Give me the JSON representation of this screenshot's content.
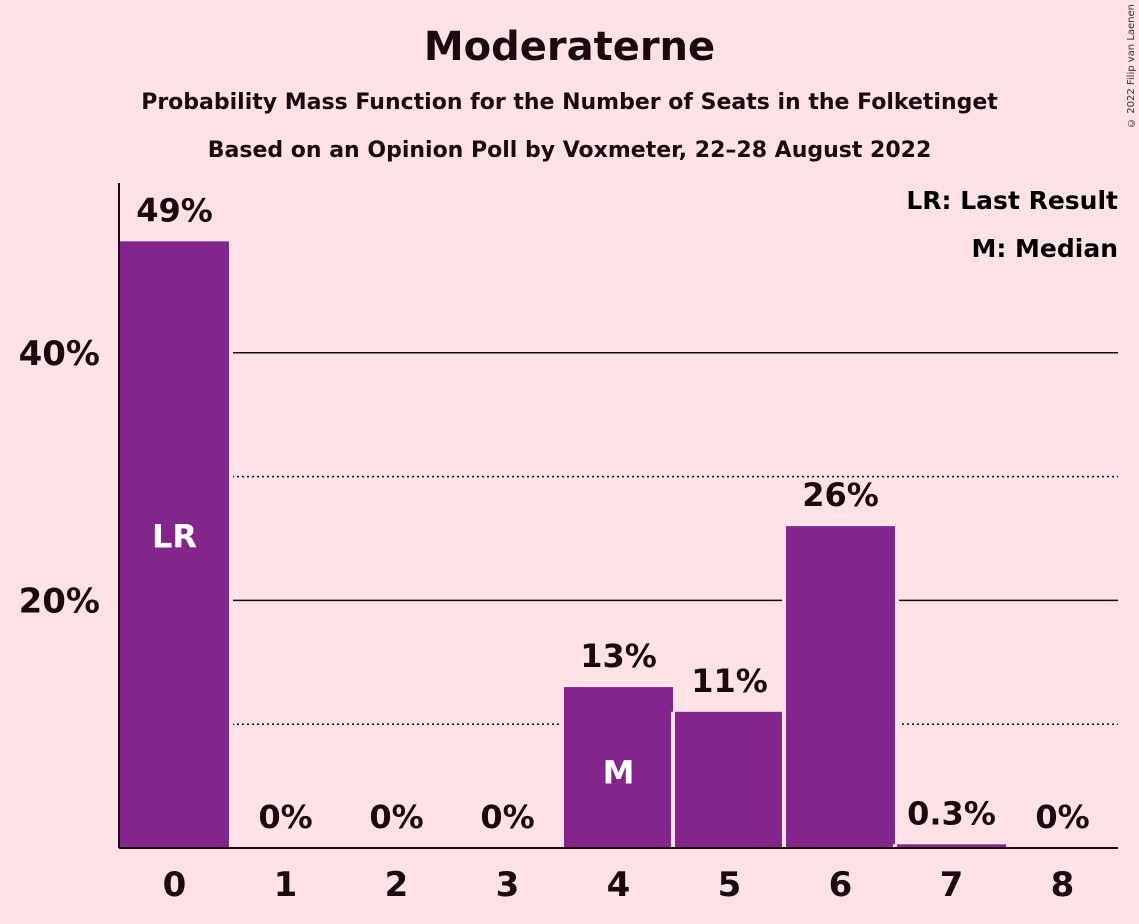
{
  "header": {
    "title": "Moderaterne",
    "subtitle1": "Probability Mass Function for the Number of Seats in the Folketinget",
    "subtitle2": "Based on an Opinion Poll by Voxmeter, 22–28 August 2022",
    "copyright": "© 2022 Filip van Laenen"
  },
  "legend": {
    "lr": "LR: Last Result",
    "m": "M: Median"
  },
  "colors": {
    "bar": "#84258C",
    "background": "#FFE2E6",
    "text": "#1a0a0f"
  },
  "chart_data": {
    "type": "bar",
    "title": "Moderaterne",
    "subtitle": "Probability Mass Function for the Number of Seats in the Folketinget",
    "categories": [
      "0",
      "1",
      "2",
      "3",
      "4",
      "5",
      "6",
      "7",
      "8"
    ],
    "values": [
      49,
      0,
      0,
      0,
      13,
      11,
      26,
      0.3,
      0
    ],
    "value_labels": [
      "49%",
      "0%",
      "0%",
      "0%",
      "13%",
      "11%",
      "26%",
      "0.3%",
      "0%"
    ],
    "bar_markers": [
      "LR",
      "",
      "",
      "",
      "M",
      "",
      "",
      "",
      ""
    ],
    "y_ticks": [
      20,
      40
    ],
    "y_tick_labels": [
      "20%",
      "40%"
    ],
    "y_minor_ticks": [
      10,
      30
    ],
    "ylim": [
      0,
      54
    ],
    "grid": true,
    "legend_position": "top-right"
  }
}
